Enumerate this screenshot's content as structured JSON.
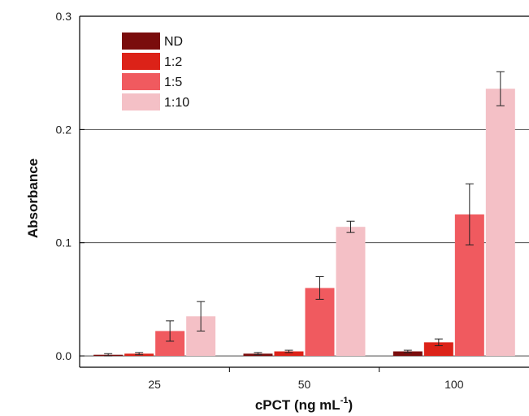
{
  "chart_data": {
    "type": "bar",
    "title": "",
    "xlabel": "cPCT (ng mL",
    "xlabel_sup": "-1",
    "xlabel_tail": ")",
    "ylabel": "Absorbance",
    "categories": [
      "25",
      "50",
      "100"
    ],
    "ylim": [
      -0.01,
      0.3
    ],
    "yticks": [
      0.0,
      0.1,
      0.2,
      0.3
    ],
    "ytick_labels": [
      "0.0",
      "0.1",
      "0.2",
      "0.3"
    ],
    "grid": true,
    "legend_position": "top-left",
    "series": [
      {
        "name": "ND",
        "color": "#7a0c0c",
        "values": [
          0.001,
          0.002,
          0.004
        ],
        "errors": [
          0.001,
          0.001,
          0.001
        ]
      },
      {
        "name": "1:2",
        "color": "#dc2218",
        "values": [
          0.002,
          0.004,
          0.012
        ],
        "errors": [
          0.001,
          0.001,
          0.003
        ]
      },
      {
        "name": "1:5",
        "color": "#f05a5f",
        "values": [
          0.022,
          0.06,
          0.125
        ],
        "errors": [
          0.009,
          0.01,
          0.027
        ]
      },
      {
        "name": "1:10",
        "color": "#f4c0c6",
        "values": [
          0.035,
          0.114,
          0.236
        ],
        "errors": [
          0.013,
          0.005,
          0.015
        ]
      }
    ]
  }
}
